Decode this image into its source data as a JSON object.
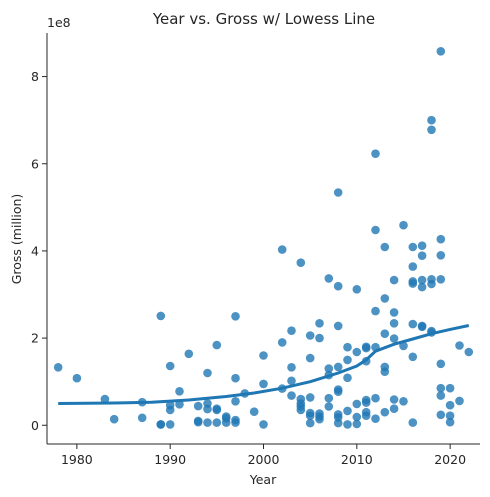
{
  "chart_data": {
    "type": "scatter",
    "title": "Year vs. Gross w/ Lowess Line",
    "xlabel": "Year",
    "ylabel": "Gross (million)",
    "y_offset_label": "1e8",
    "xlim": [
      1976.8,
      2023.2
    ],
    "ylim": [
      -0.43,
      9.0
    ],
    "x_ticks": [
      1980,
      1990,
      2000,
      2010,
      2020
    ],
    "y_ticks": [
      0,
      2,
      4,
      6,
      8
    ],
    "y_unit": "1e8",
    "grid": false,
    "color": "#1f77b4",
    "points": [
      [
        1978,
        1.33
      ],
      [
        1980,
        1.08
      ],
      [
        1983,
        0.6
      ],
      [
        1984,
        0.14
      ],
      [
        1987,
        0.53
      ],
      [
        1987,
        0.17
      ],
      [
        1989,
        2.51
      ],
      [
        1989,
        0.02
      ],
      [
        1989,
        0.02
      ],
      [
        1990,
        1.36
      ],
      [
        1990,
        0.46
      ],
      [
        1990,
        0.35
      ],
      [
        1990,
        0.02
      ],
      [
        1991,
        0.78
      ],
      [
        1991,
        0.48
      ],
      [
        1992,
        1.64
      ],
      [
        1993,
        0.44
      ],
      [
        1993,
        0.1
      ],
      [
        1993,
        0.07
      ],
      [
        1994,
        1.2
      ],
      [
        1994,
        0.5
      ],
      [
        1994,
        0.37
      ],
      [
        1994,
        0.06
      ],
      [
        1995,
        1.84
      ],
      [
        1995,
        0.38
      ],
      [
        1995,
        0.35
      ],
      [
        1995,
        0.06
      ],
      [
        1996,
        0.2
      ],
      [
        1996,
        0.16
      ],
      [
        1996,
        0.06
      ],
      [
        1997,
        2.5
      ],
      [
        1997,
        1.08
      ],
      [
        1997,
        0.55
      ],
      [
        1997,
        0.12
      ],
      [
        1997,
        0.06
      ],
      [
        1998,
        0.73
      ],
      [
        1999,
        0.31
      ],
      [
        2000,
        1.6
      ],
      [
        2000,
        0.95
      ],
      [
        2000,
        0.02
      ],
      [
        2002,
        4.03
      ],
      [
        2002,
        1.9
      ],
      [
        2002,
        0.84
      ],
      [
        2003,
        2.17
      ],
      [
        2003,
        1.33
      ],
      [
        2003,
        1.02
      ],
      [
        2003,
        0.68
      ],
      [
        2004,
        3.73
      ],
      [
        2004,
        0.6
      ],
      [
        2004,
        0.5
      ],
      [
        2004,
        0.43
      ],
      [
        2004,
        0.35
      ],
      [
        2005,
        2.06
      ],
      [
        2005,
        1.54
      ],
      [
        2005,
        0.64
      ],
      [
        2005,
        0.28
      ],
      [
        2005,
        0.22
      ],
      [
        2005,
        0.05
      ],
      [
        2006,
        2.34
      ],
      [
        2006,
        2.0
      ],
      [
        2006,
        0.27
      ],
      [
        2006,
        0.2
      ],
      [
        2006,
        0.14
      ],
      [
        2007,
        3.37
      ],
      [
        2007,
        1.3
      ],
      [
        2007,
        1.15
      ],
      [
        2007,
        0.62
      ],
      [
        2007,
        0.43
      ],
      [
        2008,
        5.34
      ],
      [
        2008,
        3.19
      ],
      [
        2008,
        2.28
      ],
      [
        2008,
        1.34
      ],
      [
        2008,
        0.82
      ],
      [
        2008,
        0.77
      ],
      [
        2008,
        0.25
      ],
      [
        2008,
        0.18
      ],
      [
        2008,
        0.05
      ],
      [
        2009,
        1.79
      ],
      [
        2009,
        1.5
      ],
      [
        2009,
        1.09
      ],
      [
        2009,
        0.33
      ],
      [
        2009,
        0.02
      ],
      [
        2010,
        3.12
      ],
      [
        2010,
        1.68
      ],
      [
        2010,
        0.49
      ],
      [
        2010,
        0.19
      ],
      [
        2010,
        0.03
      ],
      [
        2011,
        1.8
      ],
      [
        2011,
        1.77
      ],
      [
        2011,
        1.47
      ],
      [
        2011,
        0.58
      ],
      [
        2011,
        0.52
      ],
      [
        2011,
        0.3
      ],
      [
        2011,
        0.22
      ],
      [
        2012,
        6.23
      ],
      [
        2012,
        4.48
      ],
      [
        2012,
        2.62
      ],
      [
        2012,
        1.79
      ],
      [
        2012,
        0.62
      ],
      [
        2012,
        0.15
      ],
      [
        2013,
        4.09
      ],
      [
        2013,
        2.91
      ],
      [
        2013,
        2.1
      ],
      [
        2013,
        1.34
      ],
      [
        2013,
        1.23
      ],
      [
        2013,
        0.3
      ],
      [
        2014,
        3.33
      ],
      [
        2014,
        2.59
      ],
      [
        2014,
        2.34
      ],
      [
        2014,
        1.99
      ],
      [
        2014,
        0.59
      ],
      [
        2014,
        0.38
      ],
      [
        2015,
        4.59
      ],
      [
        2015,
        1.82
      ],
      [
        2015,
        0.55
      ],
      [
        2016,
        4.09
      ],
      [
        2016,
        3.64
      ],
      [
        2016,
        3.3
      ],
      [
        2016,
        3.25
      ],
      [
        2016,
        2.32
      ],
      [
        2016,
        1.57
      ],
      [
        2016,
        0.06
      ],
      [
        2017,
        4.12
      ],
      [
        2017,
        3.89
      ],
      [
        2017,
        3.33
      ],
      [
        2017,
        3.17
      ],
      [
        2017,
        2.28
      ],
      [
        2017,
        2.26
      ],
      [
        2018,
        7.0
      ],
      [
        2018,
        6.78
      ],
      [
        2018,
        3.35
      ],
      [
        2018,
        3.24
      ],
      [
        2018,
        2.16
      ],
      [
        2018,
        2.13
      ],
      [
        2019,
        8.58
      ],
      [
        2019,
        4.27
      ],
      [
        2019,
        3.9
      ],
      [
        2019,
        3.35
      ],
      [
        2019,
        1.41
      ],
      [
        2019,
        0.85
      ],
      [
        2019,
        0.68
      ],
      [
        2019,
        0.24
      ],
      [
        2020,
        0.85
      ],
      [
        2020,
        0.46
      ],
      [
        2020,
        0.22
      ],
      [
        2020,
        0.07
      ],
      [
        2021,
        1.83
      ],
      [
        2021,
        0.56
      ],
      [
        2022,
        1.68
      ]
    ],
    "lowess": {
      "x": [
        1978,
        1984,
        1988,
        1992,
        1996,
        1999,
        2002,
        2005,
        2008,
        2010,
        2011,
        2012,
        2014,
        2016,
        2018,
        2020,
        2022
      ],
      "y": [
        0.5,
        0.51,
        0.53,
        0.58,
        0.66,
        0.74,
        0.85,
        1.0,
        1.2,
        1.36,
        1.5,
        1.7,
        1.86,
        1.98,
        2.1,
        2.2,
        2.29
      ]
    }
  }
}
